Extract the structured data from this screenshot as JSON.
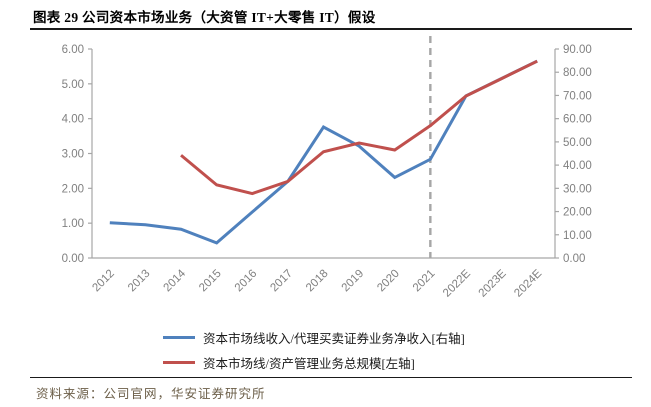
{
  "title": "图表 29 公司资本市场业务（大资管 IT+大零售 IT）假设",
  "footer": {
    "source_label": "资料来源：公司官网，华安证券研究所"
  },
  "colors": {
    "blue_series": "#4F81BD",
    "red_series": "#C0504D",
    "separator_dash": "#A6A6A6",
    "axis_line": "#A6A6A6",
    "tick_label": "#808080",
    "rule": "#1a1a1a",
    "footer_text": "#6C5F49"
  },
  "legend": [
    {
      "label": "资本市场线收入/代理买卖证券业务净收入[右轴]",
      "color": "#4F81BD"
    },
    {
      "label": "资本市场线/资产管理业务总规模[左轴]",
      "color": "#C0504D"
    }
  ],
  "chart_data": {
    "type": "line",
    "title": "图表 29 公司资本市场业务（大资管 IT+大零售 IT）假设",
    "categories": [
      "2012",
      "2013",
      "2014",
      "2015",
      "2016",
      "2017",
      "2018",
      "2019",
      "2020",
      "2021",
      "2022E",
      "2023E",
      "2024E"
    ],
    "series": [
      {
        "name": "资本市场线收入/代理买卖证券业务净收入[右轴]",
        "axis": "right",
        "color": "#4F81BD",
        "values": [
          15.2,
          14.3,
          12.4,
          6.5,
          19.8,
          33.0,
          56.4,
          48.2,
          34.7,
          42.5,
          69.8,
          77.3,
          84.8
        ]
      },
      {
        "name": "资本市场线/资产管理业务总规模[左轴]",
        "axis": "left",
        "color": "#C0504D",
        "values": [
          null,
          null,
          2.95,
          2.1,
          1.85,
          2.2,
          3.05,
          3.3,
          3.1,
          3.8,
          4.65,
          5.15,
          5.65
        ]
      }
    ],
    "left_axis": {
      "min": 0,
      "max": 6,
      "tick_labels": [
        "0.00",
        "1.00",
        "2.00",
        "3.00",
        "4.00",
        "5.00",
        "6.00"
      ]
    },
    "right_axis": {
      "min": 0,
      "max": 90,
      "tick_labels": [
        "0.00",
        "10.00",
        "20.00",
        "30.00",
        "40.00",
        "50.00",
        "60.00",
        "70.00",
        "80.00",
        "90.00"
      ]
    },
    "separator": {
      "at_category": "2021",
      "style": "dashed-vertical"
    },
    "legend_position": "bottom",
    "grid": false
  }
}
